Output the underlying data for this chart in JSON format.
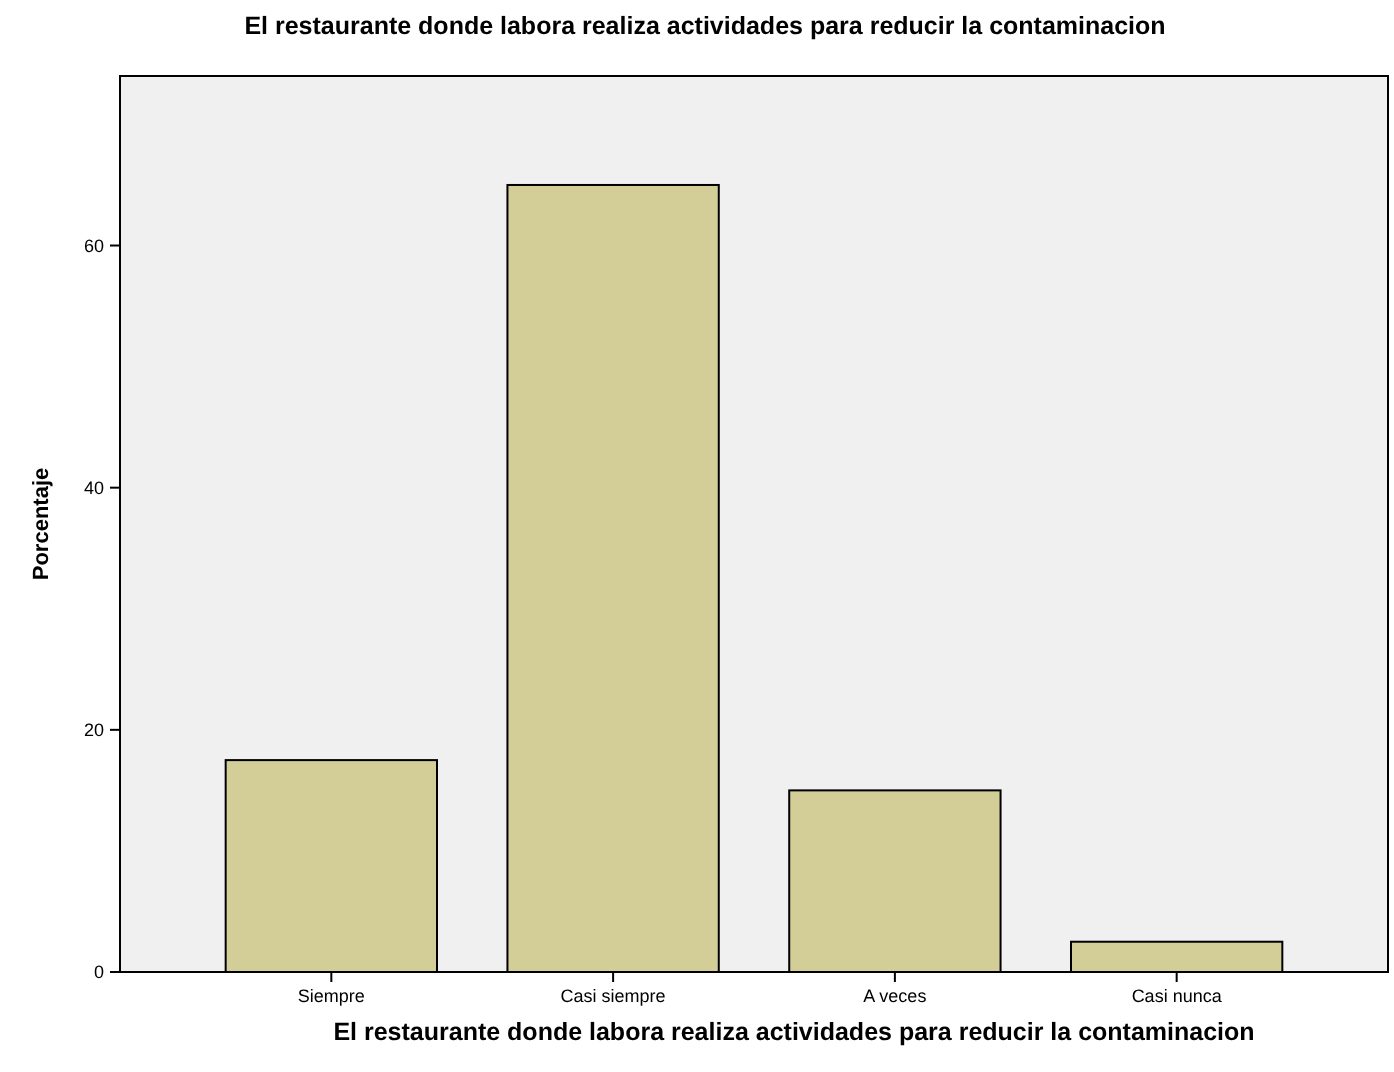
{
  "chart_data": {
    "type": "bar",
    "title": "El restaurante donde labora realiza actividades para reducir la contaminacion",
    "xlabel": "El restaurante donde labora realiza actividades para reducir la contaminacion",
    "ylabel": "Porcentaje",
    "categories": [
      "Siempre",
      "Casi siempre",
      "A veces",
      "Casi nunca"
    ],
    "values": [
      17.5,
      65,
      15,
      2.5
    ],
    "color": "#d3cd98",
    "ylim": [
      0,
      74
    ],
    "yticks": [
      0,
      20,
      40,
      60
    ],
    "grid": false
  }
}
